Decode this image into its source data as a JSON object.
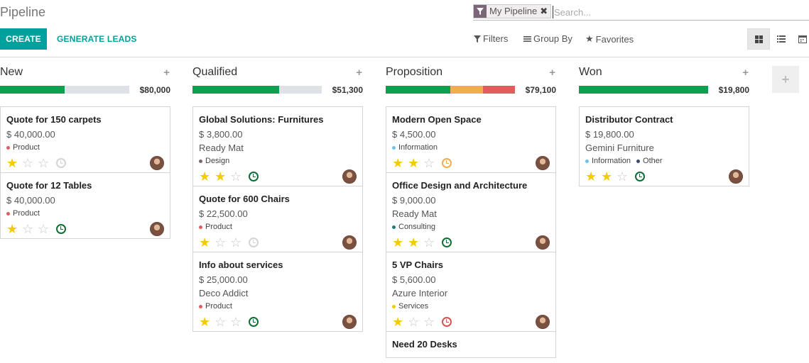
{
  "title": "Pipeline",
  "search": {
    "facet_label": "My Pipeline",
    "placeholder": "Search..."
  },
  "actions": {
    "create": "CREATE",
    "generate": "GENERATE LEADS"
  },
  "search_options": {
    "filters": "Filters",
    "group_by": "Group By",
    "favorites": "Favorites"
  },
  "views": [
    "kanban",
    "list",
    "calendar"
  ],
  "columns": [
    {
      "title": "New",
      "sum": "$80,000",
      "progress": {
        "green": 0.5,
        "orange": 0,
        "red": 0
      },
      "cards": [
        {
          "title": "Quote for 150 carpets",
          "amount": "$ 40,000.00",
          "partner": "",
          "tags": [
            {
              "label": "Product",
              "color": "#e05d5d"
            }
          ],
          "stars": 1,
          "activity": "grey"
        },
        {
          "title": "Quote for 12 Tables",
          "amount": "$ 40,000.00",
          "partner": "",
          "tags": [
            {
              "label": "Product",
              "color": "#e05d5d"
            }
          ],
          "stars": 1,
          "activity": "green"
        }
      ]
    },
    {
      "title": "Qualified",
      "sum": "$51,300",
      "progress": {
        "green": 0.67,
        "orange": 0,
        "red": 0
      },
      "cards": [
        {
          "title": "Global Solutions: Furnitures",
          "amount": "$ 3,800.00",
          "partner": "Ready Mat",
          "tags": [
            {
              "label": "Design",
              "color": "#7c6576"
            }
          ],
          "stars": 2,
          "activity": "green"
        },
        {
          "title": "Quote for 600 Chairs",
          "amount": "$ 22,500.00",
          "partner": "",
          "tags": [
            {
              "label": "Product",
              "color": "#e05d5d"
            }
          ],
          "stars": 1,
          "activity": "grey"
        },
        {
          "title": "Info about services",
          "amount": "$ 25,000.00",
          "partner": "Deco Addict",
          "tags": [
            {
              "label": "Product",
              "color": "#e05d5d"
            }
          ],
          "stars": 1,
          "activity": "green"
        }
      ]
    },
    {
      "title": "Proposition",
      "sum": "$79,100",
      "progress": {
        "green": 0.5,
        "orange": 0.25,
        "red": 0.25
      },
      "cards": [
        {
          "title": "Modern Open Space",
          "amount": "$ 4,500.00",
          "partner": "",
          "tags": [
            {
              "label": "Information",
              "color": "#6cc1ed"
            }
          ],
          "stars": 2,
          "activity": "orange"
        },
        {
          "title": "Office Design and Architecture",
          "amount": "$ 9,000.00",
          "partner": "Ready Mat",
          "tags": [
            {
              "label": "Consulting",
              "color": "#1f7a7a"
            }
          ],
          "stars": 2,
          "activity": "green"
        },
        {
          "title": "5 VP Chairs",
          "amount": "$ 5,600.00",
          "partner": "Azure Interior",
          "tags": [
            {
              "label": "Services",
              "color": "#f3cc00"
            }
          ],
          "stars": 1,
          "activity": "red"
        },
        {
          "title": "Need 20 Desks",
          "amount": "",
          "partner": "",
          "tags": [],
          "stars": 0,
          "activity": ""
        }
      ]
    },
    {
      "title": "Won",
      "sum": "$19,800",
      "progress": {
        "green": 1,
        "orange": 0,
        "red": 0
      },
      "cards": [
        {
          "title": "Distributor Contract",
          "amount": "$ 19,800.00",
          "partner": "Gemini Furniture",
          "tags": [
            {
              "label": "Information",
              "color": "#6cc1ed"
            },
            {
              "label": "Other",
              "color": "#3c4a6b"
            }
          ],
          "stars": 2,
          "activity": "green"
        }
      ]
    }
  ]
}
